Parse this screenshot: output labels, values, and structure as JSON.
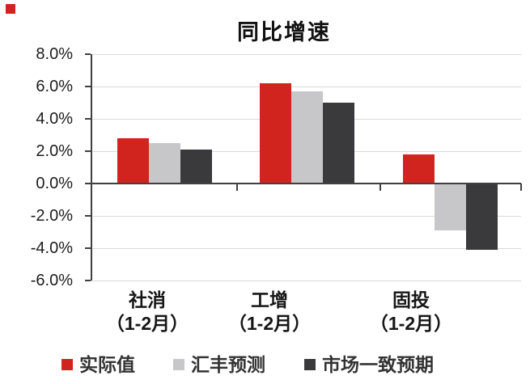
{
  "decor": {
    "corner_bullet_color": "#d2241f"
  },
  "chart_data": {
    "type": "bar",
    "title": "同比增速",
    "xlabel": "",
    "ylabel": "",
    "ylim": [
      -6,
      8
    ],
    "grid": true,
    "legend_position": "bottom",
    "y_ticks": [
      "8.0%",
      "6.0%",
      "4.0%",
      "2.0%",
      "0.0%",
      "-2.0%",
      "-4.0%",
      "-6.0%"
    ],
    "categories": [
      {
        "label": "社消",
        "sub": "（1-2月）"
      },
      {
        "label": "工增",
        "sub": "（1-2月）"
      },
      {
        "label": "固投",
        "sub": "（1-2月）"
      }
    ],
    "series": [
      {
        "name": "实际值",
        "color": "#d2241f",
        "values": [
          2.8,
          6.2,
          1.8
        ]
      },
      {
        "name": "汇丰预测",
        "color": "#c7c7c9",
        "values": [
          2.5,
          5.7,
          -2.9
        ]
      },
      {
        "name": "市场一致预期",
        "color": "#3a3a3c",
        "values": [
          2.1,
          5.0,
          -4.1
        ]
      }
    ],
    "axis_color": "#404040",
    "grid_color": "#dadada"
  }
}
